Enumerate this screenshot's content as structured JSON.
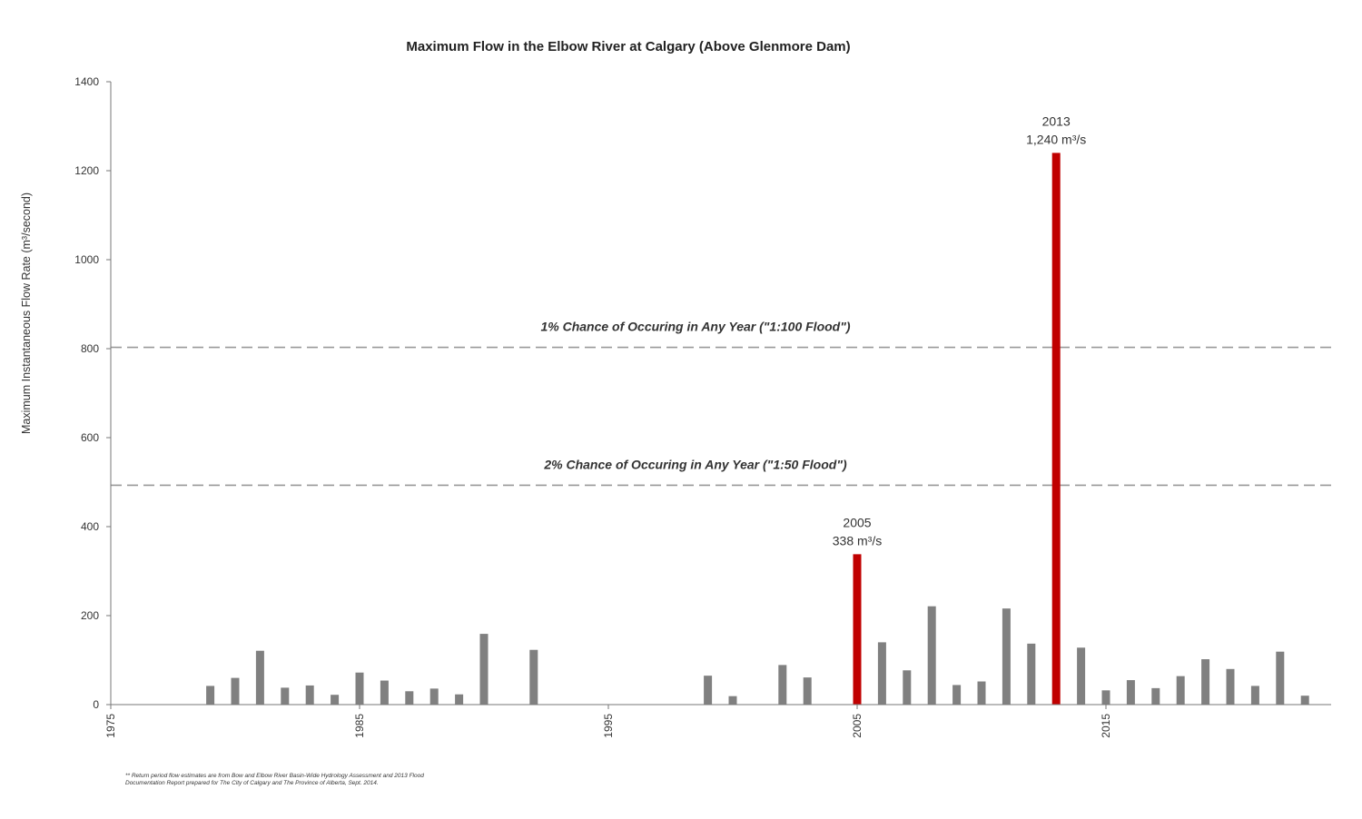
{
  "chart_data": {
    "type": "bar",
    "title": "Maximum Flow in the Elbow River at Calgary (Above Glenmore Dam)",
    "xlabel": "",
    "ylabel": "Maximum Instantaneous Flow Rate (m³/second)",
    "xlim": [
      1975,
      2024
    ],
    "ylim": [
      0,
      1400
    ],
    "x_ticks": [
      1975,
      1985,
      1995,
      2005,
      2015
    ],
    "y_ticks": [
      0,
      200,
      400,
      600,
      800,
      1000,
      1200,
      1400
    ],
    "grid": false,
    "default_color": "#808080",
    "highlight_color": "#c00000",
    "reference_line_color": "#999999",
    "x": [
      1979,
      1980,
      1981,
      1982,
      1983,
      1984,
      1985,
      1986,
      1987,
      1988,
      1989,
      1990,
      1992,
      1999,
      2000,
      2002,
      2003,
      2005,
      2006,
      2007,
      2008,
      2009,
      2010,
      2011,
      2012,
      2013,
      2014,
      2015,
      2016,
      2017,
      2018,
      2019,
      2020,
      2021,
      2022,
      2023
    ],
    "values": [
      42,
      60,
      121,
      38,
      43,
      22,
      72,
      54,
      30,
      36,
      23,
      159,
      123,
      65,
      19,
      89,
      61,
      338,
      140,
      77,
      221,
      44,
      52,
      216,
      137,
      1240,
      128,
      32,
      55,
      37,
      64,
      102,
      80,
      42,
      119,
      20
    ],
    "highlighted": [
      2005,
      2013
    ],
    "reference_lines": [
      {
        "value": 803,
        "label": "1% Chance of Occuring in Any Year (\"1:100 Flood\")"
      },
      {
        "value": 493,
        "label": "2% Chance of Occuring in Any Year (\"1:50 Flood\")"
      }
    ],
    "annotations": [
      {
        "x": 2005,
        "value": 338,
        "line1": "2005",
        "line2": "338 m³/s"
      },
      {
        "x": 2013,
        "value": 1240,
        "line1": "2013",
        "line2": "1,240 m³/s"
      }
    ]
  },
  "footnote": {
    "line1": "**  Return period flow estimates are from Bow and Elbow River Basin-Wide Hydrology Assessment and 2013 Flood",
    "line2": "Documentation Report prepared for The City of Calgary and The Province of Alberta, Sept. 2014."
  }
}
